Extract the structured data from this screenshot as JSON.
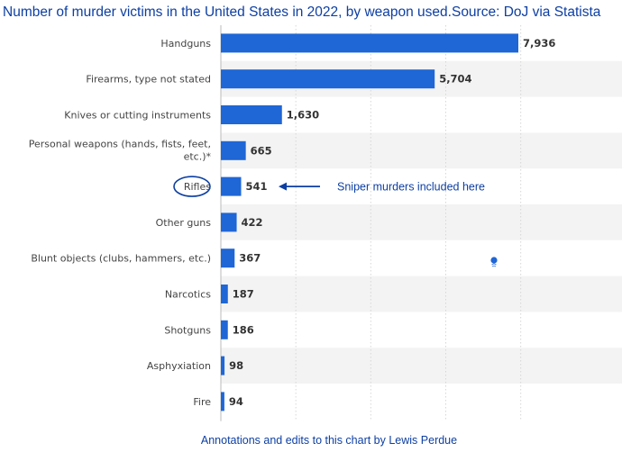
{
  "title": "Number of murder victims in the United States in 2022, by weapon used.Source: DoJ via Statista",
  "footer": "Annotations and edits to this chart by Lewis Perdue",
  "colors": {
    "bar": "#1f66d6",
    "band": "#f3f3f3",
    "annotation": "#0d3fa3",
    "label": "#444444",
    "value": "#333333"
  },
  "chart_data": {
    "type": "bar",
    "orientation": "horizontal",
    "categories": [
      "Handguns",
      "Firearms, type not stated",
      "Knives or cutting instruments",
      "Personal weapons (hands, fists, feet, etc.)*",
      "Rifles",
      "Other guns",
      "Blunt objects (clubs, hammers, etc.)",
      "Narcotics",
      "Shotguns",
      "Asphyxiation",
      "Fire"
    ],
    "values": [
      7936,
      5704,
      1630,
      665,
      541,
      422,
      367,
      187,
      186,
      98,
      94
    ],
    "value_labels": [
      "7,936",
      "5,704",
      "1,630",
      "665",
      "541",
      "422",
      "367",
      "187",
      "186",
      "98",
      "94"
    ],
    "xlim": [
      0,
      9000
    ],
    "grid": true,
    "annotations": [
      {
        "category": "Rifles",
        "text": "Sniper murders included here",
        "style": "circled label with arrow"
      }
    ]
  }
}
